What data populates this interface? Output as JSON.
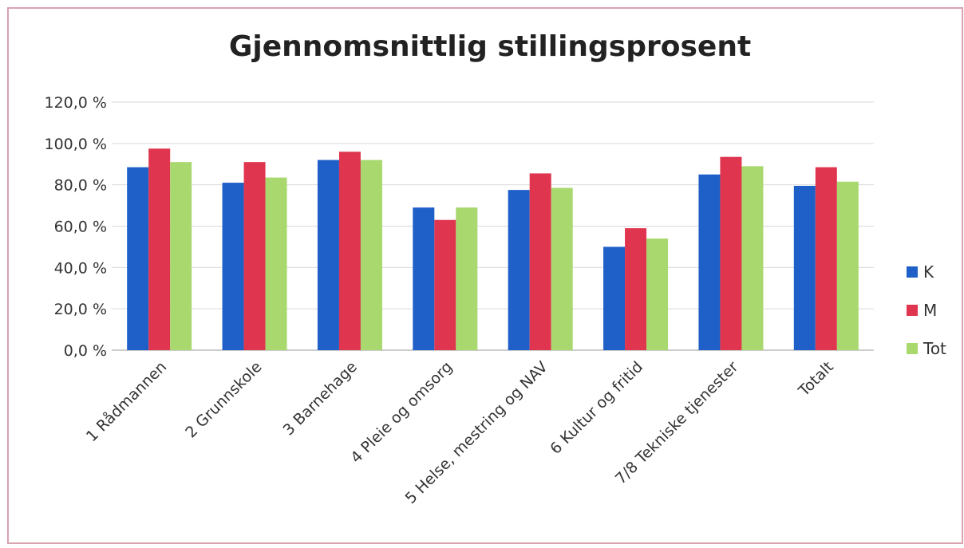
{
  "chart_data": {
    "type": "bar",
    "title": "Gjennomsnittlig stillingsprosent",
    "categories": [
      "1 Rådmannen",
      "2 Grunnskole",
      "3 Barnehage",
      "4 Pleie og omsorg",
      "5 Helse, mestring og NAV",
      "6 Kultur og fritid",
      "7/8 Tekniske tjenester",
      "Totalt"
    ],
    "series": [
      {
        "name": "K",
        "color": "#1f5fc8",
        "values": [
          88.5,
          81,
          92,
          69,
          77.5,
          50,
          85,
          79.5
        ]
      },
      {
        "name": "M",
        "color": "#e0354f",
        "values": [
          97.5,
          91,
          96,
          63,
          85.5,
          59,
          93.5,
          88.5
        ]
      },
      {
        "name": "Tot",
        "color": "#a8d86e",
        "values": [
          91,
          83.5,
          92,
          69,
          78.5,
          54,
          89,
          81.5
        ]
      }
    ],
    "ylim": [
      0,
      120
    ],
    "yticks": [
      {
        "value": 0,
        "label": "0,0 %"
      },
      {
        "value": 20,
        "label": "20,0 %"
      },
      {
        "value": 40,
        "label": "40,0 %"
      },
      {
        "value": 60,
        "label": "60,0 %"
      },
      {
        "value": 80,
        "label": "80,0 %"
      },
      {
        "value": 100,
        "label": "100,0 %"
      },
      {
        "value": 120,
        "label": "120,0 %"
      }
    ],
    "grid": true,
    "legend": "right"
  }
}
